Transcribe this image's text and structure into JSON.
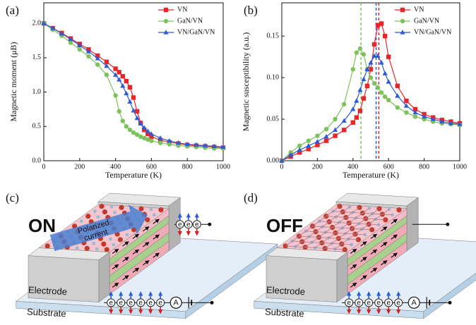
{
  "chart_data": [
    {
      "type": "line",
      "label": "(a)",
      "xlabel": "Temperature (K)",
      "ylabel": "Magnetic moment (μB)",
      "x": [
        0,
        50,
        100,
        150,
        200,
        250,
        300,
        350,
        400,
        420,
        440,
        460,
        480,
        500,
        520,
        540,
        560,
        580,
        600,
        650,
        700,
        750,
        800,
        850,
        900,
        950,
        1000
      ],
      "series": [
        {
          "name": "VN",
          "color": "#e8262a",
          "marker": "square",
          "values": [
            2,
            1.93,
            1.86,
            1.78,
            1.7,
            1.62,
            1.53,
            1.44,
            1.34,
            1.29,
            1.23,
            1.16,
            1.07,
            0.92,
            0.72,
            0.55,
            0.45,
            0.39,
            0.35,
            0.3,
            0.27,
            0.25,
            0.23,
            0.22,
            0.21,
            0.2,
            0.19
          ]
        },
        {
          "name": "GaN/VN",
          "color": "#7cc35a",
          "marker": "circle",
          "values": [
            2,
            1.91,
            1.82,
            1.72,
            1.62,
            1.52,
            1.4,
            1.25,
            0.95,
            0.72,
            0.58,
            0.5,
            0.45,
            0.41,
            0.38,
            0.35,
            0.33,
            0.31,
            0.29,
            0.26,
            0.24,
            0.22,
            0.21,
            0.2,
            0.19,
            0.18,
            0.18
          ]
        },
        {
          "name": "VN/GaN/VN",
          "color": "#2c5bd6",
          "marker": "triangle",
          "values": [
            2,
            1.93,
            1.85,
            1.77,
            1.68,
            1.59,
            1.49,
            1.38,
            1.25,
            1.18,
            1.09,
            0.98,
            0.86,
            0.73,
            0.62,
            0.54,
            0.48,
            0.43,
            0.39,
            0.33,
            0.29,
            0.26,
            0.24,
            0.23,
            0.22,
            0.21,
            0.2
          ]
        }
      ],
      "xlim": [
        0,
        1000
      ],
      "xticks": [
        0,
        200,
        400,
        600,
        800,
        1000
      ],
      "ylim": [
        0,
        2.3
      ],
      "yticks": [
        {
          "value": 0,
          "label": "0.0"
        },
        0.5,
        {
          "value": 1,
          "label": "1.0"
        },
        1.5,
        {
          "value": 2,
          "label": "2.0"
        }
      ],
      "legend": "upper right"
    },
    {
      "type": "line",
      "label": "(b)",
      "xlabel": "Temperature (K)",
      "ylabel": "Magnetic susceptibility (a.u.)",
      "x": [
        0,
        50,
        100,
        150,
        200,
        250,
        300,
        350,
        400,
        420,
        440,
        460,
        480,
        500,
        520,
        540,
        560,
        580,
        600,
        650,
        700,
        750,
        800,
        850,
        900,
        950,
        1000
      ],
      "series": [
        {
          "name": "VN",
          "color": "#e8262a",
          "marker": "square",
          "values": [
            0,
            0.005,
            0.01,
            0.014,
            0.019,
            0.024,
            0.03,
            0.037,
            0.046,
            0.052,
            0.06,
            0.075,
            0.09,
            0.11,
            0.14,
            0.163,
            0.165,
            0.15,
            0.125,
            0.09,
            0.072,
            0.062,
            0.056,
            0.052,
            0.049,
            0.047,
            0.045
          ]
        },
        {
          "name": "GaN/VN",
          "color": "#7cc35a",
          "marker": "circle",
          "values": [
            0,
            0.01,
            0.018,
            0.024,
            0.03,
            0.038,
            0.05,
            0.068,
            0.11,
            0.13,
            0.135,
            0.128,
            0.11,
            0.1,
            0.093,
            0.088,
            0.082,
            0.077,
            0.073,
            0.064,
            0.058,
            0.053,
            0.05,
            0.047,
            0.045,
            0.044,
            0.043
          ]
        },
        {
          "name": "VN/GaN/VN",
          "color": "#2c5bd6",
          "marker": "triangle",
          "values": [
            0,
            0.007,
            0.013,
            0.018,
            0.023,
            0.029,
            0.037,
            0.048,
            0.062,
            0.072,
            0.085,
            0.098,
            0.11,
            0.118,
            0.126,
            0.126,
            0.118,
            0.105,
            0.095,
            0.078,
            0.066,
            0.058,
            0.053,
            0.05,
            0.047,
            0.045,
            0.044
          ]
        }
      ],
      "vlines": [
        {
          "x": 445,
          "color": "#7cc35a"
        },
        {
          "x": 530,
          "color": "#2c5bd6"
        },
        {
          "x": 545,
          "color": "#e8262a"
        }
      ],
      "xlim": [
        0,
        1000
      ],
      "xticks": [
        0,
        200,
        400,
        600,
        800,
        1000
      ],
      "ylim": [
        0,
        0.19
      ],
      "yticks": [
        {
          "value": 0,
          "label": "0.00"
        },
        0.05,
        {
          "value": 0.1,
          "label": "0.10"
        },
        0.15
      ],
      "legend": "upper right"
    }
  ],
  "diagrams": [
    {
      "label": "(c)",
      "state": "ON",
      "arrow_text": [
        "Polarized",
        "current"
      ],
      "electrode": "Electrode",
      "substrate": "Substrate",
      "carrier": "e",
      "meter": "A"
    },
    {
      "label": "(d)",
      "state": "OFF",
      "electrode": "Electrode",
      "substrate": "Substrate",
      "carrier": "e",
      "meter": "A"
    }
  ]
}
